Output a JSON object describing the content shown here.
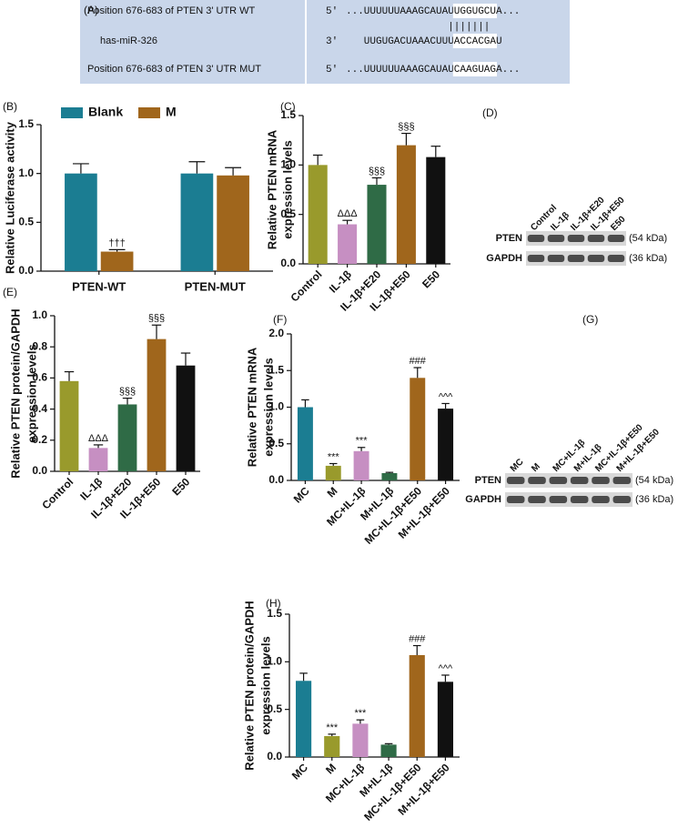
{
  "panel_a": {
    "panel": "(A)",
    "rows": [
      {
        "label": "Position 676-683 of PTEN 3' UTR WT",
        "end": "5'",
        "seq": [
          "...UUUUUUAAAGCAUAU",
          "UGGUGCU",
          "A..."
        ]
      },
      {
        "label": "has-miR-326",
        "end": "3'",
        "seq": [
          "UUGUGACUAAACUUU",
          "ACCACGA",
          "U"
        ]
      },
      {
        "label": "Position 676-683 of PTEN 3' UTR MUT",
        "end": "5'",
        "seq": [
          "...UUUUUUAAAGCAUAU",
          "CAAGUAG",
          "A..."
        ]
      }
    ],
    "pairing": "|||||||"
  },
  "blots": [
    {
      "panel": "(D)",
      "lanes": [
        "Control",
        "IL-1β",
        "IL-1β+E20",
        "IL-1β+E50",
        "E50"
      ],
      "rows": [
        {
          "name": "PTEN",
          "size": "(54 kDa)"
        },
        {
          "name": "GAPDH",
          "size": "(36 kDa)"
        }
      ]
    },
    {
      "panel": "(G)",
      "lanes": [
        "MC",
        "M",
        "MC+IL-1β",
        "M+IL-1β",
        "MC+IL-1β+E50",
        "M+IL-1β+E50"
      ],
      "rows": [
        {
          "name": "PTEN",
          "size": "(54 kDa)"
        },
        {
          "name": "GAPDH",
          "size": "(36 kDa)"
        }
      ]
    }
  ],
  "chart_data": [
    {
      "type": "bar",
      "panel": "(B)",
      "ylabel": [
        "Relative Luciferase activity"
      ],
      "categories": [
        "PTEN-WT",
        "PTEN-MUT"
      ],
      "series": [
        {
          "name": "Blank",
          "color": "#1b7d92",
          "values": [
            1.0,
            1.0
          ],
          "errors": [
            0.1,
            0.12
          ],
          "annotations": [
            null,
            null
          ]
        },
        {
          "name": "M",
          "color": "#a0661c",
          "values": [
            0.2,
            0.98
          ],
          "errors": [
            0.02,
            0.08
          ],
          "annotations": [
            "†††",
            null
          ]
        }
      ],
      "ylim": [
        0,
        1.5
      ],
      "yticks": [
        {
          "value": 0,
          "label": "0.0"
        },
        0.5,
        {
          "value": 1,
          "label": "1.0"
        },
        1.5
      ]
    },
    {
      "type": "bar",
      "panel": "(C)",
      "ylabel": [
        "Relative PTEN mRNA",
        "expression levels"
      ],
      "categories": [
        "Control",
        "IL-1β",
        "IL-1β+E20",
        "IL-1β+E50",
        "E50"
      ],
      "values": [
        1.0,
        0.4,
        0.8,
        1.2,
        1.08
      ],
      "errors": [
        0.1,
        0.04,
        0.07,
        0.12,
        0.11
      ],
      "annotations": [
        null,
        "ΔΔΔ",
        "§§§",
        "§§§",
        null
      ],
      "colors": [
        "#999a2c",
        "#c68fc2",
        "#2f6b46",
        "#a0661c",
        "#111111"
      ],
      "ylim": [
        0,
        1.5
      ],
      "yticks": [
        {
          "value": 0,
          "label": "0.0"
        },
        0.5,
        {
          "value": 1,
          "label": "1.0"
        },
        1.5
      ]
    },
    {
      "type": "bar",
      "panel": "(E)",
      "ylabel": [
        "Relative PTEN protein/GAPDH",
        "expression levels"
      ],
      "categories": [
        "Control",
        "IL-1β",
        "IL-1β+E20",
        "IL-1β+E50",
        "E50"
      ],
      "values": [
        0.58,
        0.15,
        0.43,
        0.85,
        0.68
      ],
      "errors": [
        0.06,
        0.02,
        0.04,
        0.09,
        0.08
      ],
      "annotations": [
        null,
        "ΔΔΔ",
        "§§§",
        "§§§",
        null
      ],
      "colors": [
        "#999a2c",
        "#c68fc2",
        "#2f6b46",
        "#a0661c",
        "#111111"
      ],
      "ylim": [
        0,
        1.0
      ],
      "yticks": [
        {
          "value": 0,
          "label": "0.0"
        },
        0.2,
        0.4,
        0.6,
        0.8,
        {
          "value": 1,
          "label": "1.0"
        }
      ]
    },
    {
      "type": "bar",
      "panel": "(F)",
      "ylabel": [
        "Relative PTEN  mRNA",
        "expression levels"
      ],
      "categories": [
        "MC",
        "M",
        "MC+IL-1β",
        "M+IL-1β",
        "MC+IL-1β+E50",
        "M+IL-1β+E50"
      ],
      "values": [
        1.0,
        0.2,
        0.4,
        0.1,
        1.4,
        0.98
      ],
      "errors": [
        0.1,
        0.03,
        0.05,
        0.01,
        0.14,
        0.07
      ],
      "annotations": [
        null,
        "***",
        "***",
        null,
        "###",
        "^^^"
      ],
      "colors": [
        "#1b7d92",
        "#999a2c",
        "#c68fc2",
        "#2f6b46",
        "#a0661c",
        "#111111"
      ],
      "ylim": [
        0,
        2.0
      ],
      "yticks": [
        {
          "value": 0,
          "label": "0.0"
        },
        0.5,
        {
          "value": 1,
          "label": "1.0"
        },
        1.5,
        {
          "value": 2,
          "label": "2.0"
        }
      ]
    },
    {
      "type": "bar",
      "panel": "(H)",
      "ylabel": [
        "Relative PTEN protein/GAPDH",
        "expression levels"
      ],
      "categories": [
        "MC",
        "M",
        "MC+IL-1β",
        "M+IL-1β",
        "MC+IL-1β+E50",
        "M+IL-1β+E50"
      ],
      "values": [
        0.8,
        0.22,
        0.35,
        0.13,
        1.07,
        0.79
      ],
      "errors": [
        0.08,
        0.02,
        0.04,
        0.01,
        0.1,
        0.07
      ],
      "annotations": [
        null,
        "***",
        "***",
        null,
        "###",
        "^^^"
      ],
      "colors": [
        "#1b7d92",
        "#999a2c",
        "#c68fc2",
        "#2f6b46",
        "#a0661c",
        "#111111"
      ],
      "ylim": [
        0,
        1.5
      ],
      "yticks": [
        {
          "value": 0,
          "label": "0.0"
        },
        0.5,
        {
          "value": 1,
          "label": "1.0"
        },
        1.5
      ]
    }
  ]
}
